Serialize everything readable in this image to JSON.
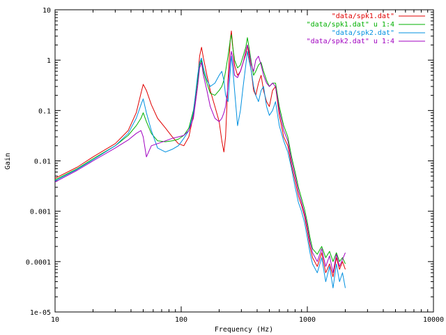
{
  "chart_data": {
    "type": "line",
    "title": "",
    "xlabel": "Frequency (Hz)",
    "ylabel": "Gain",
    "x_scale": "log",
    "y_scale": "log",
    "xlim": [
      10,
      10000
    ],
    "ylim": [
      1e-05,
      10
    ],
    "grid": false,
    "legend_position": "top-right",
    "x_ticks": [
      {
        "value": 10,
        "label": "10"
      },
      {
        "value": 100,
        "label": "100"
      },
      {
        "value": 1000,
        "label": "1000"
      },
      {
        "value": 10000,
        "label": "10000"
      }
    ],
    "y_ticks": [
      {
        "value": 1e-05,
        "label": "1e-05"
      },
      {
        "value": 0.0001,
        "label": "0.0001"
      },
      {
        "value": 0.001,
        "label": "0.001"
      },
      {
        "value": 0.01,
        "label": "0.01"
      },
      {
        "value": 0.1,
        "label": "0.1"
      },
      {
        "value": 1,
        "label": "1"
      },
      {
        "value": 10,
        "label": "10"
      }
    ],
    "series": [
      {
        "name": "\"data/spk1.dat\"",
        "color": "#e00000",
        "x": [
          10,
          15,
          20,
          30,
          38,
          44,
          48,
          50,
          53,
          58,
          65,
          75,
          85,
          95,
          105,
          115,
          125,
          135,
          140,
          145,
          150,
          160,
          170,
          185,
          200,
          210,
          218,
          225,
          235,
          245,
          250,
          255,
          265,
          280,
          295,
          310,
          325,
          335,
          345,
          360,
          375,
          390,
          410,
          430,
          450,
          475,
          500,
          530,
          560,
          600,
          650,
          700,
          750,
          800,
          850,
          900,
          950,
          1000,
          1050,
          1100,
          1200,
          1300,
          1400,
          1500,
          1600,
          1700,
          1800,
          1900,
          2000
        ],
        "y": [
          0.0045,
          0.0075,
          0.012,
          0.022,
          0.04,
          0.09,
          0.22,
          0.33,
          0.25,
          0.13,
          0.07,
          0.045,
          0.03,
          0.022,
          0.02,
          0.03,
          0.08,
          0.4,
          1.2,
          1.8,
          1.1,
          0.5,
          0.25,
          0.12,
          0.06,
          0.025,
          0.015,
          0.03,
          0.4,
          2.5,
          3.8,
          2.2,
          0.8,
          0.5,
          0.6,
          0.9,
          1.3,
          2.0,
          1.2,
          0.6,
          0.25,
          0.2,
          0.35,
          0.5,
          0.25,
          0.15,
          0.12,
          0.25,
          0.3,
          0.08,
          0.03,
          0.02,
          0.008,
          0.004,
          0.002,
          0.0013,
          0.0008,
          0.0004,
          0.0002,
          0.00012,
          8e-05,
          0.00015,
          6e-05,
          9e-05,
          5e-05,
          0.00012,
          7e-05,
          0.0001,
          7e-05
        ]
      },
      {
        "name": "\"data/spk1.dat\" u 1:4",
        "color": "#00b000",
        "x": [
          10,
          15,
          20,
          30,
          38,
          44,
          48,
          50,
          53,
          58,
          65,
          75,
          85,
          95,
          105,
          115,
          125,
          135,
          140,
          145,
          150,
          160,
          170,
          185,
          200,
          210,
          218,
          225,
          235,
          245,
          250,
          255,
          265,
          280,
          295,
          310,
          325,
          335,
          345,
          360,
          375,
          390,
          410,
          430,
          450,
          475,
          500,
          530,
          560,
          600,
          650,
          700,
          750,
          800,
          850,
          900,
          950,
          1000,
          1050,
          1100,
          1200,
          1300,
          1400,
          1500,
          1600,
          1700,
          1800,
          1900,
          2000
        ],
        "y": [
          0.0042,
          0.007,
          0.011,
          0.02,
          0.032,
          0.05,
          0.07,
          0.09,
          0.06,
          0.035,
          0.025,
          0.024,
          0.025,
          0.027,
          0.032,
          0.045,
          0.1,
          0.4,
          0.8,
          1.0,
          0.6,
          0.35,
          0.22,
          0.2,
          0.25,
          0.3,
          0.4,
          0.6,
          1.2,
          2.5,
          3.2,
          2.0,
          1.0,
          0.7,
          0.8,
          1.2,
          1.8,
          2.8,
          1.8,
          0.9,
          0.5,
          0.6,
          0.8,
          0.9,
          0.6,
          0.4,
          0.3,
          0.35,
          0.35,
          0.12,
          0.05,
          0.03,
          0.012,
          0.006,
          0.003,
          0.0018,
          0.0011,
          0.0006,
          0.0003,
          0.00018,
          0.00014,
          0.0002,
          0.00012,
          0.00016,
          0.0001,
          0.00015,
          0.0001,
          0.00012,
          9e-05
        ]
      },
      {
        "name": "\"data/spk2.dat\"",
        "color": "#0090e0",
        "x": [
          10,
          15,
          20,
          30,
          38,
          44,
          48,
          50,
          53,
          58,
          65,
          75,
          85,
          95,
          105,
          115,
          125,
          135,
          140,
          145,
          150,
          160,
          170,
          185,
          200,
          210,
          218,
          225,
          235,
          245,
          250,
          255,
          265,
          280,
          295,
          310,
          325,
          335,
          345,
          360,
          375,
          390,
          410,
          430,
          450,
          475,
          500,
          530,
          560,
          600,
          650,
          700,
          750,
          800,
          850,
          900,
          950,
          1000,
          1050,
          1100,
          1200,
          1300,
          1400,
          1500,
          1600,
          1700,
          1800,
          1900,
          2000
        ],
        "y": [
          0.004,
          0.0068,
          0.0105,
          0.02,
          0.035,
          0.07,
          0.13,
          0.17,
          0.09,
          0.04,
          0.018,
          0.015,
          0.017,
          0.02,
          0.028,
          0.04,
          0.09,
          0.5,
          0.9,
          1.1,
          0.7,
          0.4,
          0.3,
          0.35,
          0.5,
          0.6,
          0.4,
          0.2,
          0.15,
          0.6,
          1.2,
          0.8,
          0.25,
          0.05,
          0.1,
          0.3,
          0.8,
          1.5,
          1.0,
          0.6,
          0.3,
          0.2,
          0.15,
          0.25,
          0.3,
          0.12,
          0.08,
          0.1,
          0.15,
          0.05,
          0.025,
          0.015,
          0.007,
          0.003,
          0.0015,
          0.001,
          0.0006,
          0.0003,
          0.00015,
          9e-05,
          6e-05,
          0.00012,
          4e-05,
          8e-05,
          3e-05,
          9e-05,
          4e-05,
          6e-05,
          3e-05
        ]
      },
      {
        "name": "\"data/spk2.dat\" u 1:4",
        "color": "#a000c0",
        "x": [
          10,
          15,
          20,
          30,
          38,
          44,
          48,
          50,
          53,
          58,
          65,
          75,
          85,
          95,
          105,
          115,
          125,
          135,
          140,
          145,
          150,
          160,
          170,
          185,
          200,
          210,
          218,
          225,
          235,
          245,
          250,
          255,
          265,
          280,
          295,
          310,
          325,
          335,
          345,
          360,
          375,
          390,
          410,
          430,
          450,
          475,
          500,
          530,
          560,
          600,
          650,
          700,
          750,
          800,
          850,
          900,
          950,
          1000,
          1050,
          1100,
          1200,
          1300,
          1400,
          1500,
          1600,
          1700,
          1800,
          1900,
          2000
        ],
        "y": [
          0.0038,
          0.0065,
          0.01,
          0.018,
          0.026,
          0.035,
          0.04,
          0.03,
          0.012,
          0.02,
          0.022,
          0.025,
          0.028,
          0.03,
          0.032,
          0.04,
          0.07,
          0.3,
          0.7,
          0.9,
          0.5,
          0.25,
          0.12,
          0.07,
          0.06,
          0.07,
          0.09,
          0.12,
          0.3,
          1.0,
          1.5,
          1.2,
          0.5,
          0.45,
          0.6,
          0.9,
          1.5,
          2.0,
          1.5,
          0.8,
          0.6,
          1.0,
          1.2,
          0.8,
          0.5,
          0.35,
          0.3,
          0.35,
          0.3,
          0.1,
          0.04,
          0.025,
          0.01,
          0.005,
          0.0025,
          0.0015,
          0.0009,
          0.0005,
          0.00025,
          0.00015,
          0.0001,
          0.00018,
          8e-05,
          0.00013,
          6e-05,
          0.00014,
          8e-05,
          0.00011,
          0.00015
        ]
      }
    ]
  }
}
